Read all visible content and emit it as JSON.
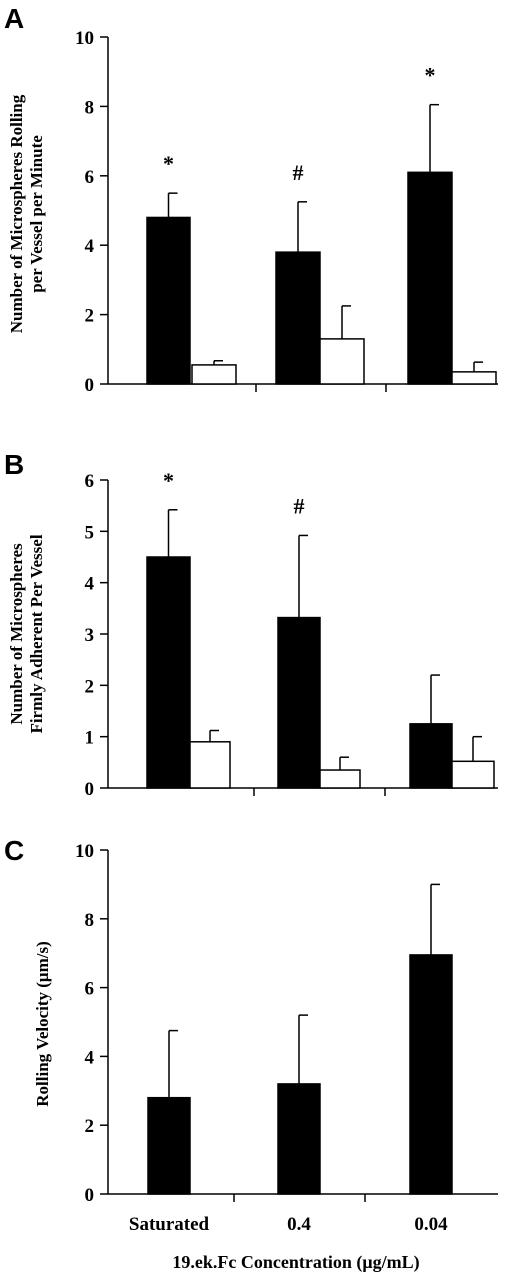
{
  "colors": {
    "filled": "#000000",
    "open": "#ffffff",
    "axis": "#000000"
  },
  "chart_data": [
    {
      "type": "bar",
      "panel": "A",
      "ylabel_lines": [
        "Number of Microspheres  Rolling",
        "per Vessel per Minute"
      ],
      "ylim": [
        0,
        10
      ],
      "yticks": [
        0,
        2,
        4,
        6,
        8,
        10
      ],
      "categories": [
        "Saturated",
        "0.4",
        "0.04"
      ],
      "series": [
        {
          "fill": "filled",
          "values": [
            4.8,
            3.8,
            6.1
          ],
          "errors": [
            0.7,
            1.45,
            1.95
          ]
        },
        {
          "fill": "open",
          "values": [
            0.55,
            1.3,
            0.35
          ],
          "errors": [
            0.12,
            0.95,
            0.28
          ]
        }
      ],
      "annotations": [
        "*",
        "#",
        "*"
      ]
    },
    {
      "type": "bar",
      "panel": "B",
      "ylabel_lines": [
        "Number of Microspheres",
        "Firmly Adherent Per Vessel"
      ],
      "ylim": [
        0,
        6
      ],
      "yticks": [
        0,
        1,
        2,
        3,
        4,
        5,
        6
      ],
      "categories": [
        "Saturated",
        "0.4",
        "0.04"
      ],
      "series": [
        {
          "fill": "filled",
          "values": [
            4.5,
            3.32,
            1.25
          ],
          "errors": [
            0.92,
            1.6,
            0.95
          ]
        },
        {
          "fill": "open",
          "values": [
            0.9,
            0.35,
            0.52
          ],
          "errors": [
            0.22,
            0.25,
            0.48
          ]
        }
      ],
      "annotations": [
        "*",
        "#",
        ""
      ]
    },
    {
      "type": "bar",
      "panel": "C",
      "ylabel": "Rolling Velocity (μm/s)",
      "ylim": [
        0,
        10
      ],
      "yticks": [
        0,
        2,
        4,
        6,
        8,
        10
      ],
      "categories": [
        "Saturated",
        "0.4",
        "0.04"
      ],
      "series": [
        {
          "fill": "filled",
          "values": [
            2.8,
            3.2,
            6.95
          ],
          "errors": [
            1.95,
            2.0,
            2.05
          ]
        }
      ],
      "xlabel": "19.ek.Fc Concentration (μg/mL)"
    }
  ]
}
